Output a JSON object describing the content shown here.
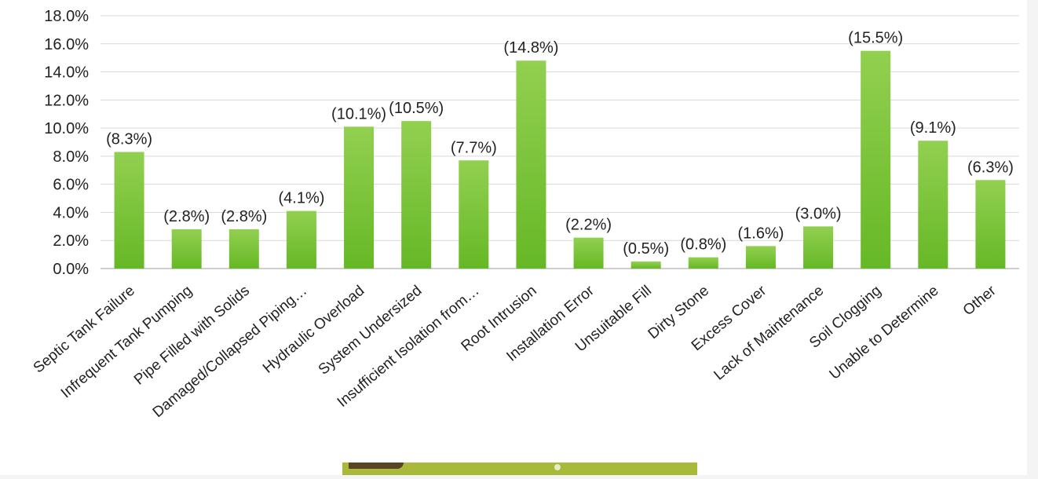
{
  "colors": {
    "bar_top": "#92d050",
    "bar_bottom": "#66b826",
    "background": "#ffffff",
    "page": "#f4f4f4"
  },
  "chart_data": {
    "type": "bar",
    "title": "",
    "xlabel": "",
    "ylabel": "",
    "ylim": [
      0,
      18
    ],
    "y_ticks": [
      "0.0%",
      "2.0%",
      "4.0%",
      "6.0%",
      "8.0%",
      "10.0%",
      "12.0%",
      "14.0%",
      "16.0%",
      "18.0%"
    ],
    "grid": true,
    "legend": "none",
    "categories": [
      "Septic Tank Failure",
      "Infrequent Tank Pumping",
      "Pipe Filled with Solids",
      "Damaged/Collapsed Piping…",
      "Hydraulic Overload",
      "System Undersized",
      "Insufficient Isolation from…",
      "Root Intrusion",
      "Installation Error",
      "Unsuitable Fill",
      "Dirty Stone",
      "Excess Cover",
      "Lack of Maintenance",
      "Soil Clogging",
      "Unable to Determine",
      "Other"
    ],
    "values": [
      8.3,
      2.8,
      2.8,
      4.1,
      10.1,
      10.5,
      7.7,
      14.8,
      2.2,
      0.5,
      0.8,
      1.6,
      3.0,
      15.5,
      9.1,
      6.3
    ],
    "data_labels": [
      "(8.3%)",
      "(2.8%)",
      "(2.8%)",
      "(4.1%)",
      "(10.1%)",
      "(10.5%)",
      "(7.7%)",
      "(14.8%)",
      "(2.2%)",
      "(0.5%)",
      "(0.8%)",
      "(1.6%)",
      "(3.0%)",
      "(15.5%)",
      "(9.1%)",
      "(6.3%)"
    ]
  }
}
